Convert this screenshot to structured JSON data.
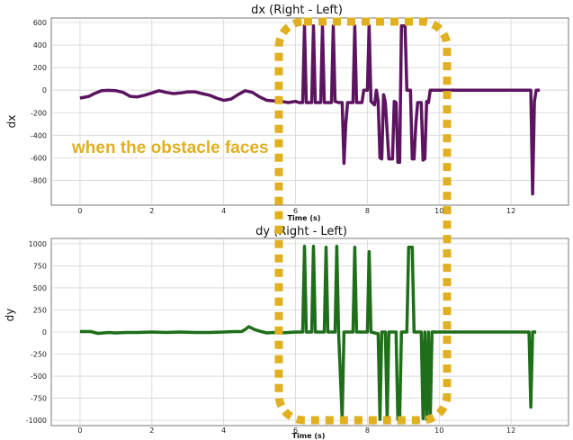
{
  "annotation": {
    "text": "when the obstacle faces",
    "color": "#E0B020"
  },
  "chart_data": [
    {
      "type": "line",
      "title": "dx (Right - Left)",
      "xlabel": "Time (s)",
      "ylabel": "dx",
      "xlim": [
        -0.8,
        13.6
      ],
      "ylim": [
        -1020,
        640
      ],
      "xticks": [
        0,
        2,
        4,
        6,
        8,
        10,
        12
      ],
      "yticks": [
        600,
        400,
        200,
        0,
        -200,
        -400,
        -600,
        -800
      ],
      "grid": true,
      "series": [
        {
          "color": "#5C1460",
          "points": [
            [
              0,
              -70
            ],
            [
              0.25,
              -55
            ],
            [
              0.4,
              -30
            ],
            [
              0.6,
              -5
            ],
            [
              0.8,
              -2
            ],
            [
              1,
              -5
            ],
            [
              1.2,
              -20
            ],
            [
              1.4,
              -55
            ],
            [
              1.6,
              -60
            ],
            [
              1.8,
              -45
            ],
            [
              2,
              -25
            ],
            [
              2.2,
              -5
            ],
            [
              2.4,
              -20
            ],
            [
              2.6,
              -30
            ],
            [
              2.8,
              -25
            ],
            [
              3,
              -15
            ],
            [
              3.2,
              -15
            ],
            [
              3.4,
              -30
            ],
            [
              3.6,
              -45
            ],
            [
              3.8,
              -70
            ],
            [
              4,
              -90
            ],
            [
              4.2,
              -80
            ],
            [
              4.4,
              -40
            ],
            [
              4.6,
              -5
            ],
            [
              4.8,
              -20
            ],
            [
              5,
              -60
            ],
            [
              5.2,
              -90
            ],
            [
              5.4,
              -95
            ],
            [
              5.6,
              -100
            ],
            [
              5.8,
              -110
            ],
            [
              6,
              -100
            ],
            [
              6.1,
              -110
            ],
            [
              6.2,
              -110
            ],
            [
              6.25,
              570
            ],
            [
              6.3,
              -110
            ],
            [
              6.45,
              -110
            ],
            [
              6.5,
              570
            ],
            [
              6.55,
              -110
            ],
            [
              6.7,
              -110
            ],
            [
              6.75,
              570
            ],
            [
              6.8,
              -110
            ],
            [
              7,
              -110
            ],
            [
              7.05,
              570
            ],
            [
              7.1,
              -100
            ],
            [
              7.2,
              -110
            ],
            [
              7.3,
              -110
            ],
            [
              7.35,
              -650
            ],
            [
              7.4,
              -300
            ],
            [
              7.45,
              -110
            ],
            [
              7.6,
              -110
            ],
            [
              7.65,
              570
            ],
            [
              7.7,
              -110
            ],
            [
              7.85,
              -110
            ],
            [
              7.9,
              0
            ],
            [
              8,
              0
            ],
            [
              8.05,
              570
            ],
            [
              8.1,
              -100
            ],
            [
              8.2,
              -130
            ],
            [
              8.25,
              0
            ],
            [
              8.3,
              -100
            ],
            [
              8.35,
              -600
            ],
            [
              8.4,
              -610
            ],
            [
              8.45,
              -40
            ],
            [
              8.5,
              -110
            ],
            [
              8.6,
              -610
            ],
            [
              8.7,
              -610
            ],
            [
              8.75,
              -100
            ],
            [
              8.8,
              -110
            ],
            [
              8.85,
              -640
            ],
            [
              8.9,
              -640
            ],
            [
              8.95,
              570
            ],
            [
              9.05,
              570
            ],
            [
              9.1,
              0
            ],
            [
              9.2,
              0
            ],
            [
              9.25,
              -610
            ],
            [
              9.3,
              -610
            ],
            [
              9.35,
              -300
            ],
            [
              9.4,
              -110
            ],
            [
              9.5,
              -110
            ],
            [
              9.55,
              -620
            ],
            [
              9.6,
              -610
            ],
            [
              9.65,
              -100
            ],
            [
              9.7,
              -110
            ],
            [
              9.75,
              0
            ],
            [
              12.55,
              0
            ],
            [
              12.6,
              -920
            ],
            [
              12.65,
              -100
            ],
            [
              12.7,
              0
            ],
            [
              12.8,
              0
            ]
          ]
        }
      ]
    },
    {
      "type": "line",
      "title": "dy (Right - Left)",
      "xlabel": "Time (s)",
      "ylabel": "dy",
      "xlim": [
        -0.8,
        13.6
      ],
      "ylim": [
        -1060,
        1060
      ],
      "xticks": [
        0,
        2,
        4,
        6,
        8,
        10,
        12
      ],
      "yticks": [
        1000,
        750,
        500,
        250,
        0,
        -250,
        -500,
        -750,
        -1000
      ],
      "grid": true,
      "series": [
        {
          "color": "#1F6E1A",
          "points": [
            [
              0,
              5
            ],
            [
              0.3,
              5
            ],
            [
              0.5,
              -15
            ],
            [
              0.8,
              -5
            ],
            [
              1,
              -10
            ],
            [
              1.3,
              -5
            ],
            [
              1.6,
              -5
            ],
            [
              2,
              0
            ],
            [
              2.4,
              -5
            ],
            [
              2.8,
              0
            ],
            [
              3.2,
              -5
            ],
            [
              3.6,
              -5
            ],
            [
              4,
              0
            ],
            [
              4.3,
              5
            ],
            [
              4.5,
              5
            ],
            [
              4.6,
              30
            ],
            [
              4.7,
              60
            ],
            [
              4.85,
              30
            ],
            [
              5,
              10
            ],
            [
              5.2,
              -10
            ],
            [
              5.4,
              -5
            ],
            [
              5.6,
              -10
            ],
            [
              5.8,
              -5
            ],
            [
              6,
              0
            ],
            [
              6.2,
              0
            ],
            [
              6.25,
              970
            ],
            [
              6.3,
              0
            ],
            [
              6.45,
              0
            ],
            [
              6.5,
              970
            ],
            [
              6.55,
              0
            ],
            [
              6.8,
              0
            ],
            [
              6.85,
              960
            ],
            [
              6.9,
              0
            ],
            [
              7.1,
              0
            ],
            [
              7.15,
              970
            ],
            [
              7.2,
              0
            ],
            [
              7.3,
              -980
            ],
            [
              7.35,
              0
            ],
            [
              7.6,
              0
            ],
            [
              7.65,
              960
            ],
            [
              7.7,
              0
            ],
            [
              8,
              0
            ],
            [
              8.05,
              910
            ],
            [
              8.1,
              0
            ],
            [
              8.3,
              -20
            ],
            [
              8.35,
              -990
            ],
            [
              8.4,
              0
            ],
            [
              8.5,
              0
            ],
            [
              8.55,
              -980
            ],
            [
              8.6,
              0
            ],
            [
              8.8,
              0
            ],
            [
              8.85,
              -990
            ],
            [
              8.9,
              -980
            ],
            [
              8.95,
              0
            ],
            [
              9.1,
              0
            ],
            [
              9.15,
              960
            ],
            [
              9.25,
              960
            ],
            [
              9.3,
              0
            ],
            [
              9.5,
              0
            ],
            [
              9.55,
              -980
            ],
            [
              9.6,
              0
            ],
            [
              9.65,
              -990
            ],
            [
              9.7,
              0
            ],
            [
              9.75,
              -990
            ],
            [
              9.8,
              0
            ],
            [
              12.5,
              0
            ],
            [
              12.55,
              -850
            ],
            [
              12.6,
              0
            ],
            [
              12.7,
              0
            ]
          ]
        }
      ]
    }
  ]
}
